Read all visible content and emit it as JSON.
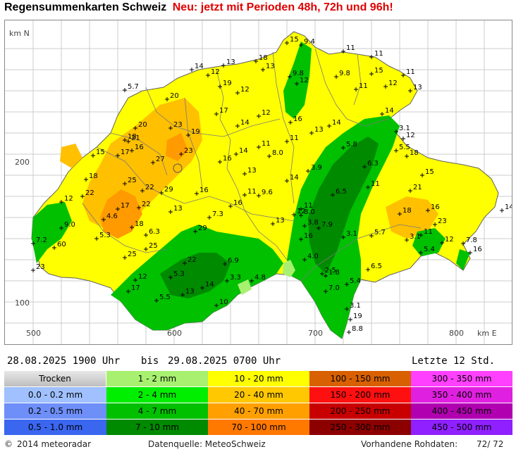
{
  "title": {
    "main": "Regensummenkarten Schweiz",
    "news": "Neu: jetzt mit Perioden 48h, 72h und 96h!"
  },
  "map": {
    "axis_labels": {
      "north": "km N",
      "east": "km E"
    },
    "y_ticks": [
      "200",
      "100"
    ],
    "x_ticks": [
      "500",
      "600",
      "700",
      "800"
    ],
    "station_values": [
      "15",
      "9.4",
      "11",
      "11",
      "13",
      "18",
      "13",
      "14",
      "11",
      "15",
      "12",
      "13",
      "12",
      "11",
      "5.7",
      "9.8",
      "9.8",
      "12",
      "20",
      "19",
      "12",
      "17",
      "12",
      "16",
      "14",
      "13",
      "14",
      "3.1",
      "20",
      "23",
      "18",
      "19",
      "14",
      "11",
      "21",
      "16",
      "23",
      "15",
      "17",
      "27",
      "11",
      "5.8",
      "16",
      "8.0",
      "14",
      "18",
      "5.5",
      "12",
      "13",
      "3.9",
      "6.3",
      "18",
      "15",
      "22",
      "25",
      "22",
      "29",
      "16",
      "14",
      "11",
      "9.6",
      "11",
      "21",
      "12",
      "22",
      "17",
      "13",
      "7.3",
      "16",
      "12",
      "6.5",
      "11",
      "8.0",
      "13",
      "18",
      "16",
      "3.8",
      "14",
      "9.0",
      "4.6",
      "18",
      "29",
      "7.9",
      "3.1",
      "23",
      "5.3",
      "60",
      "7.2",
      "6.3",
      "25",
      "16",
      "3.1",
      "5.7",
      "11",
      "12",
      "7.8",
      "25",
      "22",
      "6.9",
      "4.0",
      "1.8",
      "5.4",
      "16",
      "23",
      "5.3",
      "3.3",
      "4.8",
      "2.5",
      "6.5",
      "17",
      "12",
      "14",
      "7.0",
      "5.4",
      "5.5",
      "10",
      "3.1",
      "13",
      "8.8",
      "19",
      "25"
    ],
    "colors": {
      "frame": "#888888",
      "border": "#808080",
      "yellow": "#ffff00",
      "light_orange": "#ffc000",
      "orange": "#ff9800",
      "green": "#00cc00",
      "dark_green": "#008800"
    }
  },
  "period": {
    "from": "28.08.2025  1900 Uhr",
    "separator": "bis",
    "to": "29.08.2025  0700 Uhr",
    "last": "Letzte  12  Std."
  },
  "legend": {
    "dry_label": "Trocken",
    "items": [
      {
        "label": "0.0 - 0.2 mm",
        "color": "#a0c0ff"
      },
      {
        "label": "0.2 - 0.5 mm",
        "color": "#6e8ff8"
      },
      {
        "label": "0.5 - 1.0 mm",
        "color": "#3a66f0"
      },
      {
        "label": "1 - 2 mm",
        "color": "#a8f070"
      },
      {
        "label": "2 - 4 mm",
        "color": "#00ee00"
      },
      {
        "label": "4 - 7 mm",
        "color": "#00c000"
      },
      {
        "label": "7 - 10 mm",
        "color": "#008a00"
      },
      {
        "label": "10 - 20 mm",
        "color": "#ffff00"
      },
      {
        "label": "20 - 40 mm",
        "color": "#ffc800"
      },
      {
        "label": "40 - 70 mm",
        "color": "#ffa000"
      },
      {
        "label": "70 - 100 mm",
        "color": "#ff7800"
      },
      {
        "label": "100 - 150 mm",
        "color": "#d86000"
      },
      {
        "label": "150 - 200 mm",
        "color": "#ff1010"
      },
      {
        "label": "200 - 250 mm",
        "color": "#c80000"
      },
      {
        "label": "250 - 300 mm",
        "color": "#8c0000"
      },
      {
        "label": "300 - 350 mm",
        "color": "#ff40ff"
      },
      {
        "label": "350 - 400 mm",
        "color": "#e020e0"
      },
      {
        "label": "400 - 450 mm",
        "color": "#b000b0"
      },
      {
        "label": "450 - 500 mm",
        "color": "#9020ff"
      }
    ]
  },
  "footer": {
    "copyright": "2014  meteoradar",
    "source": "Datenquelle: MeteoSchweiz",
    "rawdata_label": "Vorhandene Rohdaten:",
    "rawdata_value": "72/ 72"
  }
}
